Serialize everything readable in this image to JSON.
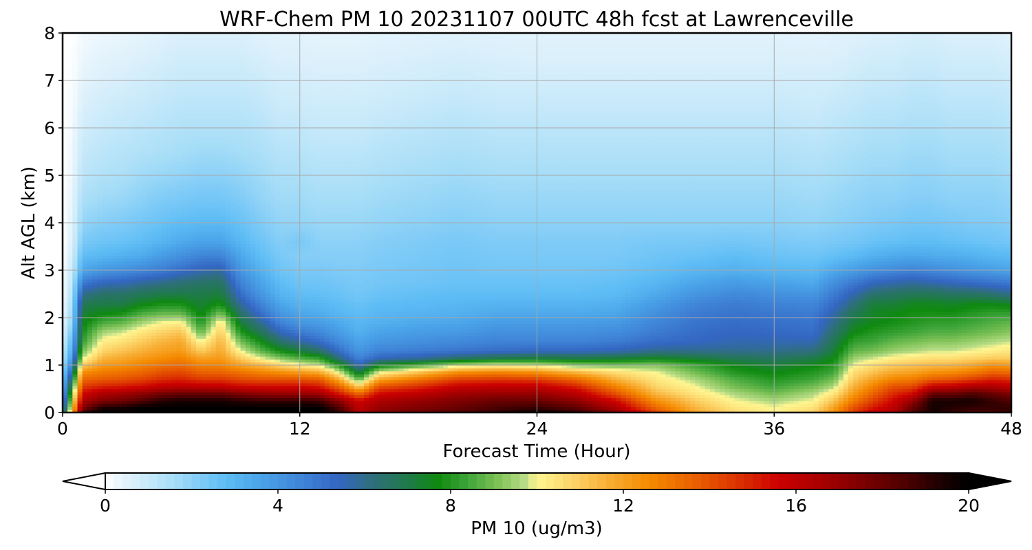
{
  "chart_data": {
    "type": "heatmap",
    "title": "WRF-Chem PM 10  20231107 00UTC 48h fcst at Lawrenceville",
    "xlabel": "Forecast Time (Hour)",
    "ylabel": "Alt AGL (km)",
    "xlim": [
      0,
      48
    ],
    "ylim": [
      0,
      8
    ],
    "xticks": [
      0,
      12,
      24,
      36,
      48
    ],
    "yticks": [
      0,
      1,
      2,
      3,
      4,
      5,
      6,
      7,
      8
    ],
    "grid": true,
    "colorbar": {
      "label": "PM 10  (ug/m3)",
      "range": [
        0,
        20
      ],
      "ticks": [
        0,
        4,
        8,
        12,
        16,
        20
      ],
      "extend": "both",
      "colors": [
        "#ffffff",
        "#e6f4fc",
        "#c7e9fa",
        "#a6ddf7",
        "#7fcbf7",
        "#5fbdf5",
        "#4aa3e8",
        "#3f83d6",
        "#3366c2",
        "#2f6f7a",
        "#1f7a4a",
        "#0f8a0f",
        "#3fa53a",
        "#7ec257",
        "#b7dc85",
        "#fff691",
        "#fcd56a",
        "#f8b038",
        "#f58a00",
        "#ea6200",
        "#dc3500",
        "#cc0000",
        "#a80000",
        "#7a0000",
        "#4a0000",
        "#1a0000",
        "#000000"
      ],
      "color_stops": [
        0,
        0.4,
        1,
        1.6,
        2.2,
        2.8,
        3.6,
        4.6,
        5.4,
        6.2,
        7.0,
        7.7,
        8.4,
        9.1,
        9.7,
        10.0,
        10.8,
        11.6,
        12.6,
        13.6,
        14.6,
        15.6,
        16.6,
        17.6,
        18.6,
        19.4,
        20.0
      ]
    },
    "grid_hours": [
      0,
      0.5,
      1,
      2,
      3,
      4,
      5,
      6,
      7,
      8,
      9,
      10,
      11,
      12,
      13,
      14,
      15,
      16,
      18,
      20,
      22,
      24,
      26,
      28,
      30,
      32,
      34,
      36,
      38,
      39,
      40,
      41,
      42,
      43,
      44,
      45,
      46,
      47,
      48
    ],
    "grid_altitudes_km": [
      0,
      0.1,
      0.25,
      0.4,
      0.55,
      0.7,
      0.85,
      1.0,
      1.15,
      1.3,
      1.5,
      1.7,
      1.9,
      2.1,
      2.3,
      2.5,
      2.75,
      3.0,
      3.3,
      3.6,
      4.0,
      4.5,
      5.0,
      5.5,
      6.0,
      6.5,
      7.0,
      7.5,
      8.0
    ],
    "values": [
      [
        5.0,
        4.5,
        4.0,
        3.5,
        3.0,
        2.5,
        2.0,
        1.5,
        1.2,
        1.0,
        0.7,
        0.5,
        0.4,
        0.3,
        0.2,
        0.1,
        0.1,
        0.1,
        0,
        0,
        0,
        0,
        0,
        0,
        0,
        0,
        0,
        0,
        0
      ],
      [
        12.0,
        11.0,
        10.0,
        9.0,
        8.0,
        7.0,
        6.0,
        5.0,
        4.0,
        3.5,
        3.0,
        2.5,
        2.0,
        1.8,
        1.6,
        1.4,
        1.2,
        1.0,
        0.8,
        0.6,
        0.5,
        0.4,
        0.3,
        0.25,
        0.2,
        0.15,
        0.1,
        0.05,
        0
      ],
      [
        19.0,
        17.5,
        16.5,
        15.5,
        14.5,
        13.5,
        12.5,
        11.0,
        9.8,
        9.0,
        8.2,
        7.8,
        7.5,
        7.2,
        6.8,
        6.0,
        4.8,
        3.5,
        2.8,
        2.3,
        1.9,
        1.5,
        1.2,
        1.0,
        0.8,
        0.6,
        0.45,
        0.3,
        0.2
      ],
      [
        20.0,
        19.5,
        17.5,
        16.5,
        15.0,
        13.8,
        13.0,
        12.2,
        11.5,
        10.8,
        10.2,
        9.5,
        8.5,
        7.6,
        7.0,
        6.5,
        5.4,
        4.0,
        3.0,
        2.5,
        2.1,
        1.7,
        1.4,
        1.2,
        1.0,
        0.8,
        0.6,
        0.45,
        0.3
      ],
      [
        20.0,
        19.5,
        17.8,
        16.8,
        15.2,
        14.0,
        13.2,
        12.4,
        11.8,
        11.2,
        10.5,
        9.8,
        8.8,
        7.8,
        7.0,
        6.5,
        5.5,
        4.2,
        3.2,
        2.6,
        2.2,
        1.8,
        1.5,
        1.3,
        1.1,
        0.9,
        0.7,
        0.5,
        0.35
      ],
      [
        20.0,
        20.0,
        18.5,
        17.2,
        15.5,
        14.3,
        13.5,
        12.8,
        12.2,
        11.6,
        11.0,
        10.4,
        9.5,
        8.5,
        7.5,
        6.8,
        5.8,
        4.5,
        3.4,
        2.8,
        2.4,
        2.0,
        1.7,
        1.4,
        1.2,
        1.0,
        0.8,
        0.6,
        0.4
      ],
      [
        20.0,
        20.0,
        19.2,
        17.8,
        16.0,
        14.8,
        14.0,
        13.2,
        12.5,
        12.0,
        11.5,
        10.8,
        10.0,
        8.8,
        7.8,
        7.0,
        6.0,
        4.8,
        3.8,
        3.1,
        2.6,
        2.2,
        1.8,
        1.5,
        1.3,
        1.1,
        0.9,
        0.7,
        0.5
      ],
      [
        20.0,
        20.0,
        19.5,
        18.0,
        16.2,
        15.0,
        14.2,
        13.4,
        12.8,
        12.2,
        11.8,
        11.2,
        10.2,
        8.8,
        7.8,
        7.0,
        6.3,
        5.2,
        4.2,
        3.4,
        2.8,
        2.3,
        1.9,
        1.6,
        1.4,
        1.2,
        1.0,
        0.8,
        0.6
      ],
      [
        20.0,
        20.0,
        19.5,
        18.0,
        16.0,
        14.6,
        13.6,
        12.8,
        12.0,
        11.0,
        10.0,
        8.8,
        8.0,
        7.5,
        7.2,
        7.0,
        6.5,
        5.6,
        4.6,
        3.6,
        2.9,
        2.4,
        2.0,
        1.7,
        1.4,
        1.2,
        1.0,
        0.8,
        0.6
      ],
      [
        20.0,
        20.0,
        19.5,
        18.0,
        16.0,
        14.6,
        13.6,
        12.8,
        12.2,
        11.8,
        11.5,
        11.0,
        10.4,
        9.0,
        7.8,
        7.2,
        6.6,
        5.8,
        4.6,
        3.6,
        2.9,
        2.4,
        2.0,
        1.7,
        1.4,
        1.2,
        1.0,
        0.8,
        0.6
      ],
      [
        20.0,
        20.0,
        19.2,
        17.5,
        15.6,
        14.2,
        13.2,
        12.0,
        11.0,
        10.0,
        9.0,
        8.0,
        7.2,
        6.5,
        5.8,
        5.2,
        4.6,
        4.0,
        3.5,
        3.0,
        2.6,
        2.2,
        1.9,
        1.6,
        1.4,
        1.2,
        1.0,
        0.8,
        0.6
      ],
      [
        20.0,
        20.0,
        19.0,
        17.2,
        15.5,
        14.0,
        12.8,
        11.5,
        10.0,
        8.8,
        7.8,
        6.8,
        6.0,
        5.2,
        4.6,
        4.0,
        3.6,
        3.2,
        2.8,
        2.5,
        2.2,
        1.9,
        1.7,
        1.5,
        1.3,
        1.1,
        0.9,
        0.7,
        0.5
      ],
      [
        20.0,
        20.0,
        19.0,
        17.0,
        15.5,
        14.0,
        12.5,
        10.8,
        9.2,
        7.8,
        6.5,
        5.5,
        4.6,
        4.0,
        3.5,
        3.1,
        2.8,
        2.5,
        2.3,
        2.1,
        1.9,
        1.7,
        1.5,
        1.3,
        1.1,
        0.9,
        0.75,
        0.6,
        0.45
      ],
      [
        20.0,
        20.0,
        19.0,
        17.0,
        15.5,
        14.0,
        12.2,
        10.2,
        8.6,
        7.2,
        5.8,
        4.8,
        4.0,
        3.5,
        3.1,
        2.8,
        2.5,
        2.3,
        2.1,
        2.3,
        1.9,
        1.7,
        1.5,
        1.3,
        1.1,
        0.9,
        0.75,
        0.6,
        0.45
      ],
      [
        20.0,
        20.0,
        18.8,
        16.8,
        15.2,
        13.8,
        11.8,
        9.8,
        8.2,
        6.5,
        5.2,
        4.4,
        3.8,
        3.3,
        3.0,
        2.7,
        2.5,
        2.3,
        2.1,
        2.0,
        1.8,
        1.6,
        1.4,
        1.2,
        1.0,
        0.85,
        0.7,
        0.55,
        0.4
      ],
      [
        19.0,
        18.5,
        17.2,
        15.2,
        13.6,
        11.8,
        10.0,
        8.0,
        6.2,
        5.2,
        4.4,
        3.8,
        3.4,
        3.0,
        2.8,
        2.6,
        2.4,
        2.2,
        2.1,
        2.0,
        1.8,
        1.6,
        1.4,
        1.2,
        1.0,
        0.85,
        0.7,
        0.55,
        0.4
      ],
      [
        16.5,
        16.0,
        15.5,
        13.5,
        11.0,
        8.8,
        7.0,
        5.5,
        4.6,
        4.0,
        3.6,
        3.2,
        3.0,
        2.8,
        2.6,
        2.4,
        2.3,
        2.2,
        2.1,
        2.0,
        1.8,
        1.6,
        1.4,
        1.2,
        1.0,
        0.85,
        0.7,
        0.55,
        0.4
      ],
      [
        17.5,
        17.0,
        16.5,
        15.5,
        14.0,
        12.0,
        10.0,
        7.5,
        5.5,
        4.6,
        4.0,
        3.6,
        3.2,
        3.0,
        2.8,
        2.6,
        2.4,
        2.3,
        2.2,
        2.1,
        1.9,
        1.7,
        1.5,
        1.3,
        1.1,
        0.9,
        0.75,
        0.6,
        0.45
      ],
      [
        18.0,
        17.5,
        17.0,
        16.0,
        14.8,
        13.2,
        11.2,
        8.5,
        5.8,
        4.8,
        4.2,
        3.8,
        3.4,
        3.1,
        2.9,
        2.7,
        2.5,
        2.4,
        2.3,
        2.2,
        2.0,
        1.8,
        1.6,
        1.4,
        1.2,
        1.0,
        0.8,
        0.65,
        0.5
      ],
      [
        18.5,
        18.0,
        17.5,
        16.8,
        15.8,
        14.4,
        12.5,
        9.6,
        6.5,
        5.0,
        4.4,
        3.9,
        3.5,
        3.2,
        3.0,
        2.8,
        2.6,
        2.5,
        2.4,
        2.3,
        2.1,
        1.9,
        1.7,
        1.5,
        1.3,
        1.1,
        0.9,
        0.7,
        0.55
      ],
      [
        19.2,
        18.6,
        18.0,
        17.0,
        16.0,
        14.6,
        12.8,
        10.0,
        7.0,
        5.2,
        4.6,
        4.2,
        3.8,
        3.4,
        3.1,
        2.8,
        2.6,
        2.4,
        2.3,
        2.2,
        2.0,
        1.8,
        1.6,
        1.4,
        1.2,
        1.0,
        0.8,
        0.65,
        0.5
      ],
      [
        20.0,
        19.0,
        18.0,
        17.0,
        16.0,
        14.5,
        12.5,
        9.8,
        7.2,
        5.4,
        4.6,
        4.2,
        3.8,
        3.4,
        3.1,
        2.8,
        2.6,
        2.4,
        2.3,
        2.2,
        2.0,
        1.8,
        1.6,
        1.4,
        1.2,
        1.0,
        0.8,
        0.6,
        0.5
      ],
      [
        19.2,
        18.2,
        17.2,
        16.2,
        15.0,
        13.5,
        11.5,
        9.2,
        7.0,
        5.4,
        4.6,
        4.2,
        3.8,
        3.4,
        3.1,
        2.8,
        2.6,
        2.4,
        2.3,
        2.2,
        2.0,
        1.8,
        1.6,
        1.4,
        1.2,
        1.0,
        0.8,
        0.6,
        0.5
      ],
      [
        17.5,
        16.5,
        15.5,
        14.0,
        12.8,
        11.6,
        10.6,
        9.0,
        7.2,
        5.6,
        4.8,
        4.3,
        3.9,
        3.5,
        3.2,
        2.9,
        2.7,
        2.5,
        2.3,
        2.2,
        2.0,
        1.8,
        1.6,
        1.4,
        1.2,
        1.0,
        0.8,
        0.6,
        0.5
      ],
      [
        14.5,
        13.5,
        12.5,
        11.5,
        10.8,
        10.4,
        10.0,
        9.2,
        7.5,
        6.0,
        5.2,
        4.8,
        4.5,
        4.2,
        3.8,
        3.4,
        3.0,
        2.7,
        2.5,
        2.3,
        2.0,
        1.8,
        1.6,
        1.4,
        1.2,
        1.0,
        0.8,
        0.6,
        0.5
      ],
      [
        12.0,
        11.5,
        11.0,
        10.4,
        10.0,
        9.6,
        9.0,
        8.4,
        7.2,
        6.0,
        5.4,
        5.2,
        5.0,
        4.8,
        4.5,
        4.0,
        3.5,
        3.0,
        2.6,
        2.3,
        2.0,
        1.8,
        1.6,
        1.4,
        1.2,
        1.0,
        0.8,
        0.6,
        0.5
      ],
      [
        10.8,
        10.4,
        10.0,
        9.6,
        9.0,
        8.6,
        8.0,
        7.6,
        6.8,
        6.0,
        5.6,
        5.4,
        5.2,
        5.0,
        4.8,
        4.4,
        3.8,
        3.2,
        2.8,
        2.4,
        2.0,
        1.8,
        1.6,
        1.4,
        1.2,
        1.0,
        0.8,
        0.6,
        0.5
      ],
      [
        10.2,
        10.0,
        9.6,
        9.0,
        8.4,
        8.0,
        7.6,
        7.2,
        6.6,
        6.0,
        5.6,
        5.3,
        5.1,
        4.9,
        4.6,
        4.2,
        3.6,
        3.0,
        2.6,
        2.3,
        2.0,
        1.8,
        1.6,
        1.4,
        1.2,
        1.0,
        0.8,
        0.6,
        0.5
      ],
      [
        11.0,
        10.5,
        10.0,
        9.6,
        9.0,
        8.4,
        8.0,
        7.6,
        7.0,
        6.2,
        5.6,
        5.2,
        5.0,
        4.8,
        4.5,
        4.0,
        3.4,
        2.9,
        2.5,
        2.2,
        1.9,
        1.7,
        1.5,
        1.3,
        1.1,
        0.9,
        0.75,
        0.6,
        0.45
      ],
      [
        12.5,
        12.0,
        11.2,
        10.4,
        9.6,
        9.0,
        8.4,
        8.0,
        7.6,
        7.2,
        6.8,
        6.4,
        6.0,
        5.6,
        5.2,
        4.8,
        4.2,
        3.4,
        2.7,
        2.3,
        2.0,
        1.8,
        1.6,
        1.4,
        1.2,
        1.0,
        0.8,
        0.6,
        0.5
      ],
      [
        14.5,
        14.0,
        13.0,
        12.2,
        11.6,
        11.0,
        10.6,
        10.0,
        9.4,
        8.8,
        8.2,
        7.6,
        7.2,
        6.8,
        6.2,
        5.6,
        4.8,
        3.8,
        2.9,
        2.4,
        2.1,
        1.9,
        1.7,
        1.5,
        1.3,
        1.1,
        0.9,
        0.7,
        0.55
      ],
      [
        16.0,
        15.2,
        14.4,
        13.6,
        12.8,
        12.0,
        11.2,
        10.6,
        9.8,
        9.0,
        8.4,
        8.0,
        7.6,
        7.4,
        7.2,
        6.4,
        5.4,
        4.2,
        3.2,
        2.6,
        2.2,
        2.0,
        1.8,
        1.6,
        1.4,
        1.2,
        1.0,
        0.8,
        0.6
      ],
      [
        16.5,
        16.0,
        15.5,
        14.8,
        14.0,
        12.8,
        11.8,
        11.0,
        10.2,
        9.4,
        8.8,
        8.2,
        7.8,
        7.6,
        7.2,
        6.6,
        5.6,
        4.4,
        3.4,
        2.7,
        2.3,
        2.0,
        1.8,
        1.6,
        1.4,
        1.2,
        1.0,
        0.8,
        0.6
      ],
      [
        18.5,
        18.0,
        17.0,
        15.5,
        14.2,
        13.0,
        12.0,
        11.2,
        10.4,
        9.6,
        9.0,
        8.4,
        8.0,
        7.8,
        7.5,
        6.8,
        5.8,
        4.6,
        3.5,
        2.8,
        2.4,
        2.1,
        1.9,
        1.7,
        1.5,
        1.3,
        1.1,
        0.9,
        0.7
      ],
      [
        19.5,
        19.5,
        19.5,
        18.0,
        15.8,
        13.8,
        12.4,
        11.4,
        10.6,
        9.8,
        9.2,
        8.6,
        8.2,
        7.8,
        7.5,
        6.8,
        5.6,
        4.4,
        3.4,
        2.8,
        2.4,
        2.1,
        1.9,
        1.7,
        1.5,
        1.3,
        1.1,
        0.9,
        0.7
      ],
      [
        19.0,
        19.2,
        19.5,
        18.0,
        16.0,
        14.0,
        12.6,
        11.5,
        10.6,
        9.8,
        9.2,
        8.6,
        8.2,
        7.8,
        7.4,
        6.6,
        5.4,
        4.2,
        3.3,
        2.7,
        2.3,
        2.0,
        1.8,
        1.6,
        1.4,
        1.2,
        1.0,
        0.8,
        0.6
      ],
      [
        18.5,
        19.0,
        19.5,
        18.5,
        16.5,
        14.5,
        13.0,
        11.8,
        10.8,
        10.0,
        9.4,
        8.8,
        8.4,
        8.0,
        7.6,
        6.6,
        5.2,
        4.0,
        3.2,
        2.6,
        2.2,
        2.0,
        1.8,
        1.6,
        1.4,
        1.2,
        1.0,
        0.8,
        0.6
      ],
      [
        18.5,
        19.0,
        19.0,
        18.0,
        16.5,
        15.0,
        13.6,
        12.4,
        11.0,
        10.2,
        9.6,
        9.0,
        8.6,
        8.2,
        7.6,
        6.4,
        5.0,
        3.8,
        3.0,
        2.5,
        2.2,
        2.0,
        1.8,
        1.6,
        1.4,
        1.2,
        1.0,
        0.8,
        0.6
      ],
      [
        19.0,
        19.0,
        18.5,
        17.5,
        16.0,
        14.8,
        13.4,
        12.2,
        11.0,
        10.4,
        9.8,
        9.2,
        8.8,
        8.2,
        7.4,
        6.0,
        4.8,
        3.6,
        2.9,
        2.4,
        2.1,
        1.9,
        1.7,
        1.5,
        1.3,
        1.1,
        0.9,
        0.7,
        0.5
      ]
    ]
  }
}
